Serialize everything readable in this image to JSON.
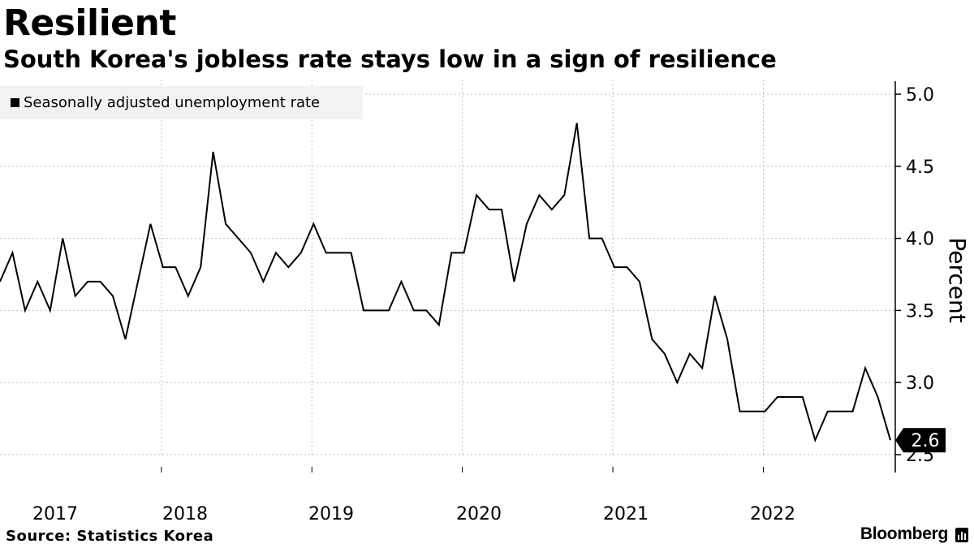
{
  "header": {
    "title": "Resilient",
    "subtitle": "South Korea's jobless rate stays low in a sign of resilience"
  },
  "legend": {
    "label": "Seasonally adjusted unemployment rate"
  },
  "footer": {
    "source": "Source: Statistics Korea",
    "brand": "Bloomberg"
  },
  "chart_data": {
    "type": "line",
    "title": "Resilient",
    "subtitle": "South Korea's jobless rate stays low in a sign of resilience",
    "ylabel": "Percent",
    "xlabel": "",
    "ylim": [
      2.5,
      5.0
    ],
    "yticks": [
      2.5,
      3.0,
      3.5,
      4.0,
      4.5,
      5.0
    ],
    "ytick_labels": [
      "2.5",
      "3.0",
      "3.5",
      "4.0",
      "4.5",
      "5.0"
    ],
    "year_labels": [
      "2017",
      "2018",
      "2019",
      "2020",
      "2021",
      "2022"
    ],
    "grid": true,
    "legend_position": "top-left",
    "last_value_label": "2.6",
    "series": [
      {
        "name": "Seasonally adjusted unemployment rate",
        "color": "#000000",
        "start": "2016-12",
        "frequency": "monthly",
        "values": [
          3.7,
          3.9,
          3.5,
          3.7,
          3.5,
          4.0,
          3.6,
          3.7,
          3.7,
          3.6,
          3.3,
          3.7,
          4.1,
          3.8,
          3.8,
          3.6,
          3.8,
          4.6,
          4.1,
          4.0,
          3.9,
          3.7,
          3.9,
          3.8,
          3.9,
          4.1,
          3.9,
          3.9,
          3.9,
          3.5,
          3.5,
          3.5,
          3.7,
          3.5,
          3.5,
          3.4,
          3.9,
          3.9,
          4.3,
          4.2,
          4.2,
          3.7,
          4.1,
          4.3,
          4.2,
          4.3,
          4.8,
          4.0,
          4.0,
          3.8,
          3.8,
          3.7,
          3.3,
          3.2,
          3.0,
          3.2,
          3.1,
          3.6,
          3.3,
          2.8,
          2.8,
          2.8,
          2.9,
          2.9,
          2.9,
          2.6,
          2.8,
          2.8,
          2.8,
          3.1,
          2.9,
          2.6
        ]
      }
    ]
  }
}
